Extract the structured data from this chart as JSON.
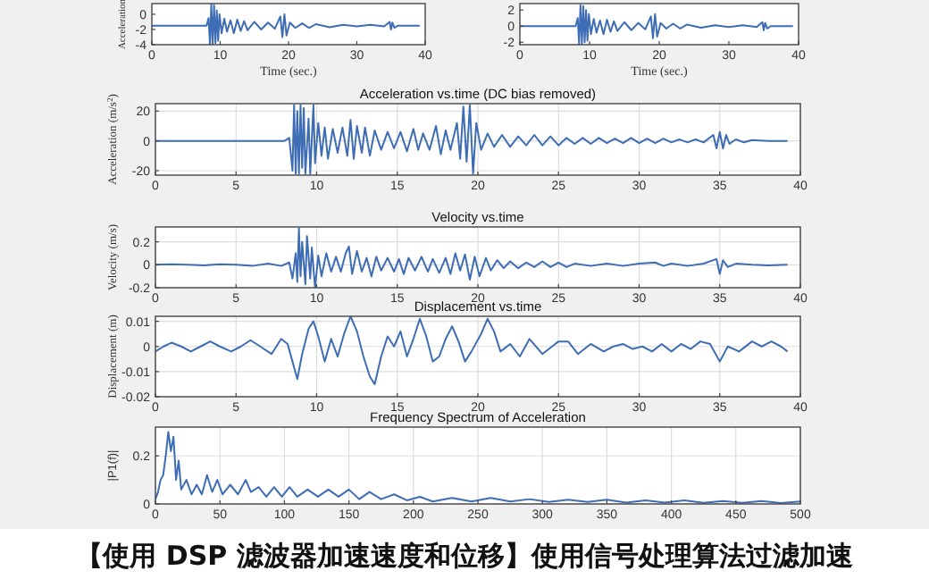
{
  "chart_data": [
    {
      "type": "line",
      "ylabel": "Acceleration",
      "xlabel": "Time (sec.)",
      "xlim": [
        0,
        40
      ],
      "xticks": [
        0,
        10,
        20,
        30,
        40
      ],
      "ylim": [
        -4,
        1.4
      ],
      "yticks": [
        -4,
        -2,
        0
      ],
      "grid": false,
      "series": [
        {
          "color": "#3e6db5",
          "x": [
            0,
            8,
            8.3,
            8.5,
            8.7,
            8.9,
            9.1,
            9.3,
            9.5,
            9.7,
            9.9,
            10.2,
            10.6,
            11,
            11.5,
            12,
            12.5,
            13,
            13.5,
            14,
            15,
            16,
            17,
            18,
            18.8,
            19.1,
            19.4,
            19.7,
            20.2,
            21,
            22,
            23,
            24,
            26,
            28,
            30,
            32,
            34,
            34.8,
            35,
            35.2,
            35.5,
            36,
            38,
            39.2
          ],
          "values": [
            -1.5,
            -1.5,
            -0.5,
            -4,
            1.3,
            -4,
            1.2,
            -3.8,
            0.5,
            -3.5,
            0,
            -2.5,
            -0.6,
            -2.3,
            -0.8,
            -2.5,
            -0.7,
            -2.2,
            -0.9,
            -2.1,
            -1,
            -2,
            -1.1,
            -1.9,
            -0.3,
            -3,
            0,
            -2.8,
            -1.1,
            -1.8,
            -1.2,
            -1.8,
            -1.3,
            -1.7,
            -1.4,
            -1.6,
            -1.4,
            -1.6,
            -1,
            -2,
            -1.1,
            -1.8,
            -1.5,
            -1.5,
            -1.5
          ]
        }
      ]
    },
    {
      "type": "line",
      "xlabel": "Time (sec.)",
      "xlim": [
        0,
        40
      ],
      "xticks": [
        0,
        10,
        20,
        30,
        40
      ],
      "ylim": [
        -2.3,
        2.8
      ],
      "yticks": [
        -2,
        0,
        2
      ],
      "grid": false,
      "series": [
        {
          "color": "#3e6db5",
          "x": [
            0,
            8,
            8.3,
            8.5,
            8.7,
            8.9,
            9.1,
            9.3,
            9.5,
            9.7,
            9.9,
            10.2,
            10.6,
            11,
            11.5,
            12,
            12.5,
            13,
            13.5,
            14,
            15,
            16,
            17,
            18,
            18.8,
            19.1,
            19.4,
            19.7,
            20.2,
            21,
            22,
            23,
            24,
            26,
            28,
            30,
            32,
            34,
            34.8,
            35,
            35.2,
            35.5,
            36,
            38,
            39.2
          ],
          "values": [
            0,
            0,
            1,
            -2.2,
            2.6,
            -2.2,
            2.5,
            -2,
            2,
            -1.8,
            1.5,
            -1,
            0.9,
            -0.8,
            0.7,
            -1,
            0.8,
            -0.7,
            0.6,
            -0.6,
            0.5,
            -0.5,
            0.4,
            -0.4,
            1.2,
            -1.5,
            1.5,
            -1.3,
            0.4,
            -0.3,
            0.3,
            -0.3,
            0.2,
            -0.2,
            0.1,
            -0.1,
            0.1,
            -0.1,
            0.5,
            -0.5,
            0.4,
            -0.3,
            0,
            0,
            0
          ]
        }
      ]
    },
    {
      "type": "line",
      "title": "Acceleration vs.time (DC bias removed)",
      "ylabel": "Acceleration (m/s$^{2}$)",
      "xlim": [
        0,
        40
      ],
      "xticks": [
        0,
        5,
        10,
        15,
        20,
        25,
        30,
        35,
        40
      ],
      "ylim": [
        -23,
        25
      ],
      "yticks": [
        -20,
        0,
        20
      ],
      "grid": true,
      "series": [
        {
          "color": "#3e6db5",
          "x": [
            0,
            8,
            8.3,
            8.5,
            8.6,
            8.7,
            8.8,
            8.9,
            9,
            9.1,
            9.2,
            9.3,
            9.5,
            9.6,
            9.8,
            9.9,
            10.1,
            10.3,
            10.5,
            10.7,
            11,
            11.3,
            11.6,
            11.9,
            12.1,
            12.3,
            12.5,
            12.8,
            13,
            13.3,
            13.6,
            14,
            14.4,
            14.8,
            15.2,
            15.6,
            16,
            16.3,
            16.6,
            17,
            17.4,
            17.7,
            18,
            18.3,
            18.7,
            18.9,
            19.1,
            19.3,
            19.5,
            19.7,
            19.9,
            20.2,
            20.6,
            21,
            21.5,
            22,
            22.5,
            23,
            23.5,
            24,
            24.5,
            25,
            25.5,
            26,
            26.5,
            27,
            27.5,
            28,
            28.5,
            29,
            29.5,
            30,
            30.5,
            31,
            31.5,
            32,
            32.5,
            33,
            33.5,
            34,
            34.6,
            34.8,
            35,
            35.2,
            35.4,
            35.6,
            36,
            36.5,
            37,
            38,
            39.2
          ],
          "values": [
            0,
            0,
            2,
            -20,
            24,
            -22,
            20,
            -22,
            24,
            -18,
            22,
            -22,
            15,
            -22,
            24,
            -15,
            12,
            -10,
            9,
            -12,
            8,
            -8,
            9,
            -10,
            14,
            -12,
            10,
            -8,
            9,
            -10,
            7,
            -6,
            6,
            -5,
            6,
            -7,
            8,
            -6,
            5,
            -6,
            10,
            -9,
            7,
            -6,
            12,
            -12,
            23,
            -14,
            24,
            -22,
            12,
            -6,
            5,
            -4,
            4,
            -4,
            3,
            -3,
            4,
            -3,
            3,
            -3,
            2,
            -2,
            2,
            -2,
            2,
            -1.5,
            1.5,
            -1.5,
            2,
            -1.5,
            1.5,
            -1.5,
            1.5,
            -1,
            1,
            -1,
            1,
            -1,
            4,
            -5,
            6,
            -5,
            4,
            -2,
            1,
            -1,
            0.5,
            0,
            0
          ]
        }
      ]
    },
    {
      "type": "line",
      "title": "Velocity vs.time",
      "ylabel": "Velocity (m/s)",
      "xlim": [
        0,
        40
      ],
      "xticks": [
        0,
        5,
        10,
        15,
        20,
        25,
        30,
        35,
        40
      ],
      "ylim": [
        -0.2,
        0.33
      ],
      "yticks": [
        -0.2,
        0,
        0.2
      ],
      "grid": true,
      "series": [
        {
          "color": "#3e6db5",
          "x": [
            0,
            1,
            2,
            3,
            4,
            5,
            6,
            7,
            7.8,
            8.3,
            8.5,
            8.7,
            8.8,
            8.9,
            9,
            9.1,
            9.3,
            9.4,
            9.6,
            9.7,
            9.9,
            10.1,
            10.3,
            10.6,
            10.9,
            11.2,
            11.5,
            11.8,
            12,
            12.2,
            12.5,
            12.8,
            13.1,
            13.4,
            13.7,
            14,
            14.4,
            14.8,
            15.1,
            15.4,
            15.7,
            16.1,
            16.5,
            16.9,
            17.2,
            17.6,
            18,
            18.3,
            18.6,
            18.9,
            19.2,
            19.5,
            19.8,
            20.1,
            20.5,
            20.8,
            21.2,
            21.6,
            22,
            22.5,
            23,
            23.5,
            24,
            24.5,
            25,
            25.5,
            26,
            27,
            28,
            29,
            30,
            31,
            31.5,
            32,
            33,
            34,
            34.8,
            35,
            35.2,
            35.5,
            36,
            37,
            38,
            39.2
          ],
          "values": [
            0,
            0.005,
            0,
            -0.005,
            0.005,
            0,
            -0.01,
            0.01,
            -0.01,
            0.02,
            -0.12,
            0.1,
            -0.15,
            0.32,
            -0.1,
            0.2,
            -0.17,
            0.25,
            -0.12,
            0.15,
            -0.2,
            0.08,
            -0.1,
            0.1,
            -0.06,
            0.07,
            -0.06,
            0.1,
            0.16,
            -0.08,
            0.12,
            -0.06,
            0.06,
            -0.1,
            0.07,
            -0.05,
            0.06,
            -0.06,
            0.05,
            -0.08,
            0.06,
            -0.05,
            0.07,
            -0.06,
            0.05,
            -0.07,
            0.06,
            -0.08,
            0.1,
            -0.05,
            0.09,
            -0.13,
            0.07,
            -0.1,
            0.06,
            -0.05,
            0.04,
            -0.03,
            0.03,
            -0.03,
            0.02,
            -0.02,
            0.03,
            -0.02,
            0.02,
            -0.02,
            0.01,
            -0.01,
            0.01,
            -0.01,
            0.01,
            0.02,
            -0.01,
            0.01,
            -0.01,
            0.01,
            0.05,
            -0.08,
            0.04,
            -0.02,
            0.01,
            0,
            -0.005,
            0
          ]
        }
      ]
    },
    {
      "type": "line",
      "title": "Displacement vs.time",
      "ylabel": "Displacement (m)",
      "xlim": [
        0,
        40
      ],
      "xticks": [
        0,
        5,
        10,
        15,
        20,
        25,
        30,
        35,
        40
      ],
      "ylim": [
        -0.02,
        0.012
      ],
      "yticks": [
        -0.02,
        -0.01,
        0,
        0.01
      ],
      "grid": true,
      "series": [
        {
          "color": "#3e6db5",
          "x": [
            0,
            0.5,
            1,
            1.6,
            2.2,
            2.8,
            3.4,
            4,
            4.7,
            5.3,
            5.9,
            6.5,
            7.2,
            7.8,
            8.2,
            8.5,
            8.8,
            9.1,
            9.5,
            9.8,
            10.1,
            10.5,
            10.9,
            11.3,
            11.7,
            12.1,
            12.5,
            12.9,
            13.3,
            13.6,
            14,
            14.4,
            14.8,
            15.2,
            15.6,
            16,
            16.4,
            16.8,
            17.2,
            17.6,
            18,
            18.4,
            18.8,
            19.2,
            19.6,
            20.2,
            20.6,
            21,
            21.4,
            22,
            22.6,
            23.2,
            24,
            24.6,
            25,
            25.6,
            26.2,
            27,
            27.8,
            28.4,
            29,
            29.6,
            30.2,
            30.8,
            31.4,
            32,
            32.6,
            33.2,
            33.8,
            34.4,
            35,
            35.5,
            36.2,
            37,
            37.6,
            38.2,
            38.8,
            39.2
          ],
          "values": [
            -0.002,
            0,
            0.0015,
            0,
            -0.002,
            0,
            0.002,
            0,
            -0.002,
            0,
            0.0025,
            0,
            -0.003,
            0.003,
            0.001,
            -0.006,
            -0.013,
            -0.003,
            0.007,
            0.01,
            0.004,
            -0.006,
            0.003,
            -0.004,
            0.005,
            0.012,
            0.006,
            -0.004,
            -0.012,
            -0.015,
            -0.004,
            0.004,
            0,
            0.006,
            -0.004,
            0.003,
            0.011,
            0.004,
            -0.006,
            -0.004,
            0.003,
            0.008,
            0.002,
            -0.006,
            -0.002,
            0.005,
            0.011,
            0.006,
            -0.002,
            0.001,
            -0.004,
            0.003,
            -0.003,
            0,
            0.002,
            0.002,
            -0.003,
            0.001,
            -0.002,
            0,
            0.001,
            -0.001,
            0,
            -0.002,
            0.001,
            -0.002,
            0.001,
            -0.001,
            0.002,
            0.001,
            -0.006,
            0,
            -0.002,
            0.002,
            0,
            0.002,
            0,
            -0.002
          ]
        }
      ]
    },
    {
      "type": "line",
      "title": "Frequency Spectrum of Acceleration",
      "ylabel": "|P1(f)|",
      "xlim": [
        0,
        500
      ],
      "xticks": [
        0,
        50,
        100,
        150,
        200,
        250,
        300,
        350,
        400,
        450,
        500
      ],
      "ylim": [
        0,
        0.32
      ],
      "yticks": [
        0,
        0.2
      ],
      "grid": true,
      "annotations": [
        "【使用 DSP 滤波器加速速度和位移】使用信号处理算法过滤加速"
      ],
      "series": [
        {
          "color": "#3e6db5",
          "x": [
            0,
            2,
            4,
            6,
            8,
            10,
            12,
            14,
            16,
            18,
            20,
            24,
            28,
            32,
            36,
            40,
            44,
            48,
            52,
            58,
            64,
            70,
            74,
            80,
            86,
            92,
            98,
            104,
            110,
            118,
            126,
            134,
            142,
            150,
            158,
            166,
            175,
            185,
            195,
            205,
            215,
            230,
            245,
            260,
            275,
            290,
            305,
            320,
            335,
            350,
            365,
            380,
            395,
            410,
            425,
            440,
            455,
            470,
            485,
            500
          ],
          "values": [
            0.02,
            0.05,
            0.1,
            0.12,
            0.2,
            0.3,
            0.22,
            0.28,
            0.1,
            0.18,
            0.06,
            0.1,
            0.04,
            0.08,
            0.04,
            0.12,
            0.05,
            0.1,
            0.04,
            0.08,
            0.04,
            0.1,
            0.05,
            0.07,
            0.03,
            0.07,
            0.03,
            0.07,
            0.03,
            0.06,
            0.03,
            0.06,
            0.03,
            0.06,
            0.02,
            0.05,
            0.02,
            0.04,
            0.015,
            0.03,
            0.01,
            0.025,
            0.01,
            0.025,
            0.01,
            0.02,
            0.008,
            0.018,
            0.008,
            0.018,
            0.006,
            0.015,
            0.006,
            0.015,
            0.005,
            0.012,
            0.005,
            0.012,
            0.004,
            0.01
          ]
        }
      ]
    }
  ]
}
